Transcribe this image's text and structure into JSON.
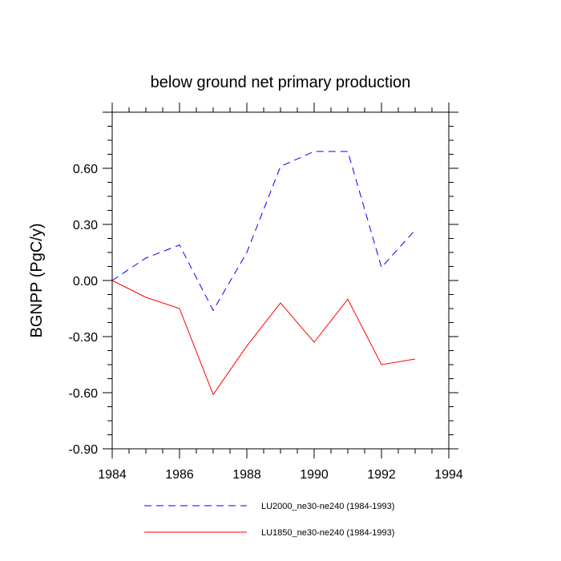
{
  "chart_data": {
    "type": "line",
    "title": "below ground net primary production",
    "xlabel": "",
    "ylabel": "BGNPP  (PgC/y)",
    "xlim": [
      1984,
      1994
    ],
    "ylim": [
      -0.9,
      0.9
    ],
    "xticks": [
      1984,
      1986,
      1988,
      1990,
      1992,
      1994
    ],
    "yticks": [
      -0.9,
      -0.6,
      -0.3,
      0.0,
      0.3,
      0.6
    ],
    "xtick_labels": [
      "1984",
      "1986",
      "1988",
      "1990",
      "1992",
      "1994"
    ],
    "ytick_labels": [
      "-0.90",
      "-0.60",
      "-0.30",
      "0.00",
      "0.30",
      "0.60"
    ],
    "x": [
      1984,
      1985,
      1986,
      1987,
      1988,
      1989,
      1990,
      1991,
      1992,
      1993
    ],
    "series": [
      {
        "name": "LU2000_ne30-ne240 (1984-1993)",
        "color": "#0000ff",
        "style": "dashed",
        "values": [
          0.0,
          0.12,
          0.19,
          -0.16,
          0.15,
          0.61,
          0.69,
          0.69,
          0.07,
          0.27
        ]
      },
      {
        "name": "LU1850_ne30-ne240 (1984-1993)",
        "color": "#ff0000",
        "style": "solid",
        "values": [
          0.0,
          -0.09,
          -0.15,
          -0.61,
          -0.35,
          -0.12,
          -0.33,
          -0.1,
          -0.45,
          -0.42
        ]
      }
    ],
    "legend_position": "bottom"
  }
}
